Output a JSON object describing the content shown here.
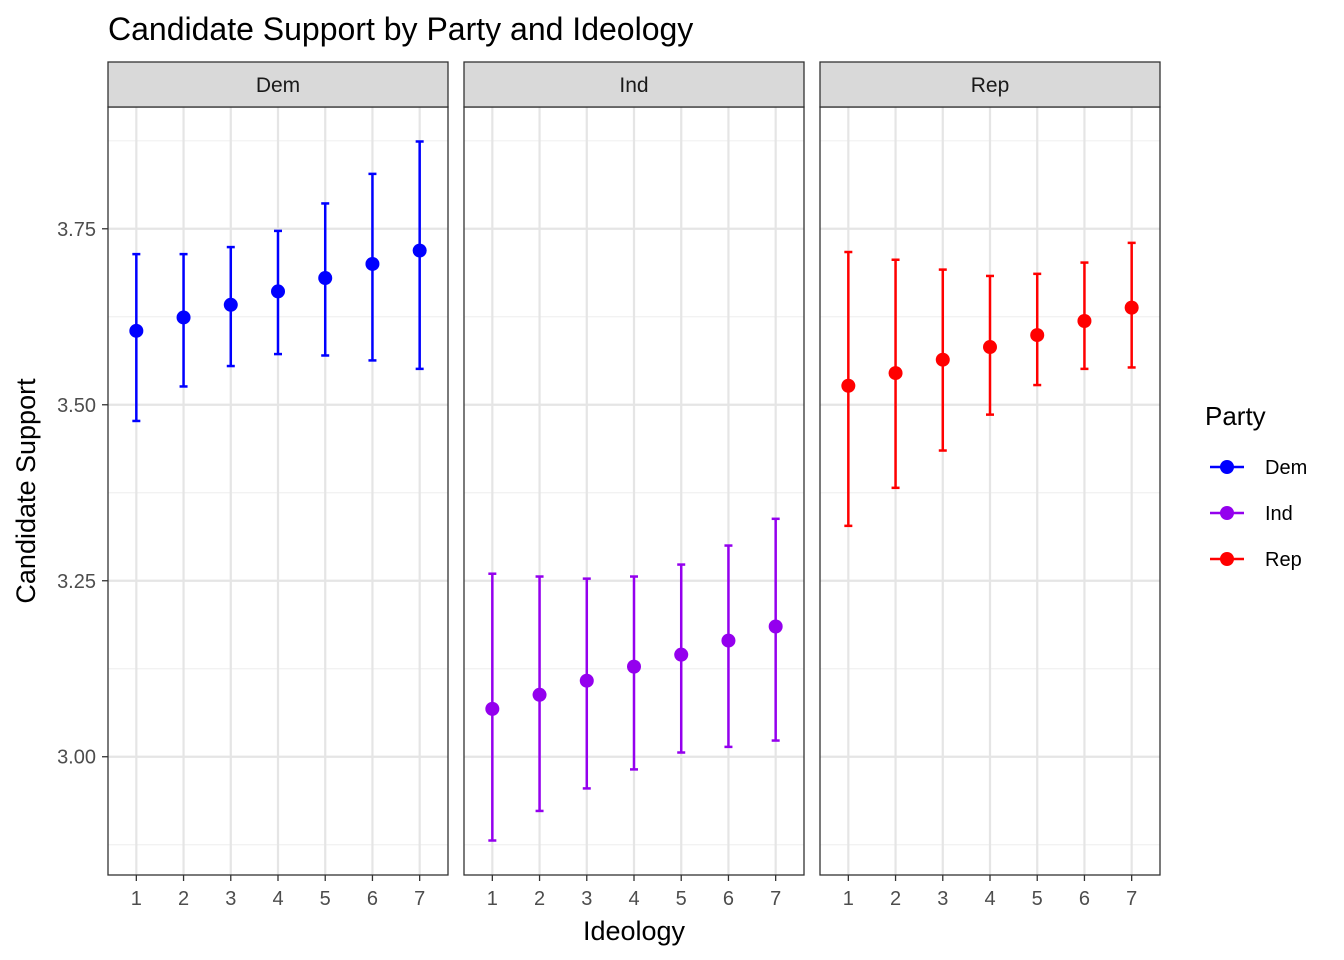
{
  "chart_data": {
    "type": "scatter",
    "subtype": "point-with-errorbars, faceted",
    "title": "Candidate Support by Party and Ideology",
    "xlabel": "Ideology",
    "ylabel": "Candidate Support",
    "x_ticks": [
      "1",
      "2",
      "3",
      "4",
      "5",
      "6",
      "7"
    ],
    "y_ticks": [
      {
        "value": 3.0,
        "label": "3.00"
      },
      {
        "value": 3.25,
        "label": "3.25"
      },
      {
        "value": 3.5,
        "label": "3.50"
      },
      {
        "value": 3.75,
        "label": "3.75"
      }
    ],
    "xlim": [
      0.4,
      7.6
    ],
    "ylim": [
      2.832,
      3.923
    ],
    "grid": true,
    "legend": {
      "title": "Party",
      "placement": "right",
      "entries": [
        "Dem",
        "Ind",
        "Rep"
      ]
    },
    "facets": [
      {
        "name": "Dem",
        "color": "#0000FF",
        "x": [
          1,
          2,
          3,
          4,
          5,
          6,
          7
        ],
        "y": [
          3.605,
          3.624,
          3.642,
          3.661,
          3.68,
          3.7,
          3.719
        ],
        "upper": [
          3.714,
          3.714,
          3.724,
          3.747,
          3.786,
          3.828,
          3.874
        ],
        "lower": [
          3.477,
          3.526,
          3.555,
          3.572,
          3.57,
          3.563,
          3.551
        ]
      },
      {
        "name": "Ind",
        "color": "#9400EE",
        "x": [
          1,
          2,
          3,
          4,
          5,
          6,
          7
        ],
        "y": [
          3.068,
          3.088,
          3.108,
          3.128,
          3.145,
          3.165,
          3.185
        ],
        "upper": [
          3.26,
          3.256,
          3.253,
          3.256,
          3.273,
          3.3,
          3.338
        ],
        "lower": [
          2.881,
          2.923,
          2.955,
          2.982,
          3.006,
          3.014,
          3.023
        ]
      },
      {
        "name": "Rep",
        "color": "#FF0000",
        "x": [
          1,
          2,
          3,
          4,
          5,
          6,
          7
        ],
        "y": [
          3.527,
          3.545,
          3.564,
          3.582,
          3.599,
          3.619,
          3.638
        ],
        "upper": [
          3.717,
          3.706,
          3.692,
          3.683,
          3.686,
          3.702,
          3.73
        ],
        "lower": [
          3.328,
          3.382,
          3.435,
          3.486,
          3.528,
          3.551,
          3.553
        ]
      }
    ]
  }
}
